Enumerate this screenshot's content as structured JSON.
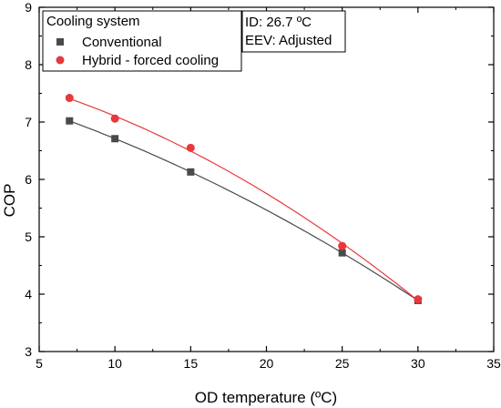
{
  "chart_data": {
    "type": "scatter",
    "title": "",
    "xlabel": "OD temperature (ºC)",
    "ylabel": "COP",
    "xlim": [
      5,
      35
    ],
    "ylim": [
      3,
      9
    ],
    "xticks": [
      "5",
      "10",
      "15",
      "20",
      "25",
      "30",
      "35"
    ],
    "yticks": [
      "3",
      "4",
      "5",
      "6",
      "7",
      "8",
      "9"
    ],
    "grid": false,
    "legend_position": "top-left",
    "legend_title": "Cooling system",
    "annotations": [
      "ID: 26.7 ºC",
      "EEV: Adjusted"
    ],
    "series": [
      {
        "name": "Conventional",
        "marker": "square",
        "color": "#4a4a4a",
        "x": [
          7,
          10,
          15,
          25,
          30
        ],
        "y": [
          7.02,
          6.71,
          6.13,
          4.72,
          3.89
        ],
        "fit_curve": true
      },
      {
        "name": "Hybrid - forced cooling",
        "marker": "circle",
        "color": "#e8383b",
        "x": [
          7,
          10,
          15,
          25,
          30
        ],
        "y": [
          7.42,
          7.06,
          6.55,
          4.84,
          3.91
        ],
        "fit_curve": true
      }
    ]
  }
}
